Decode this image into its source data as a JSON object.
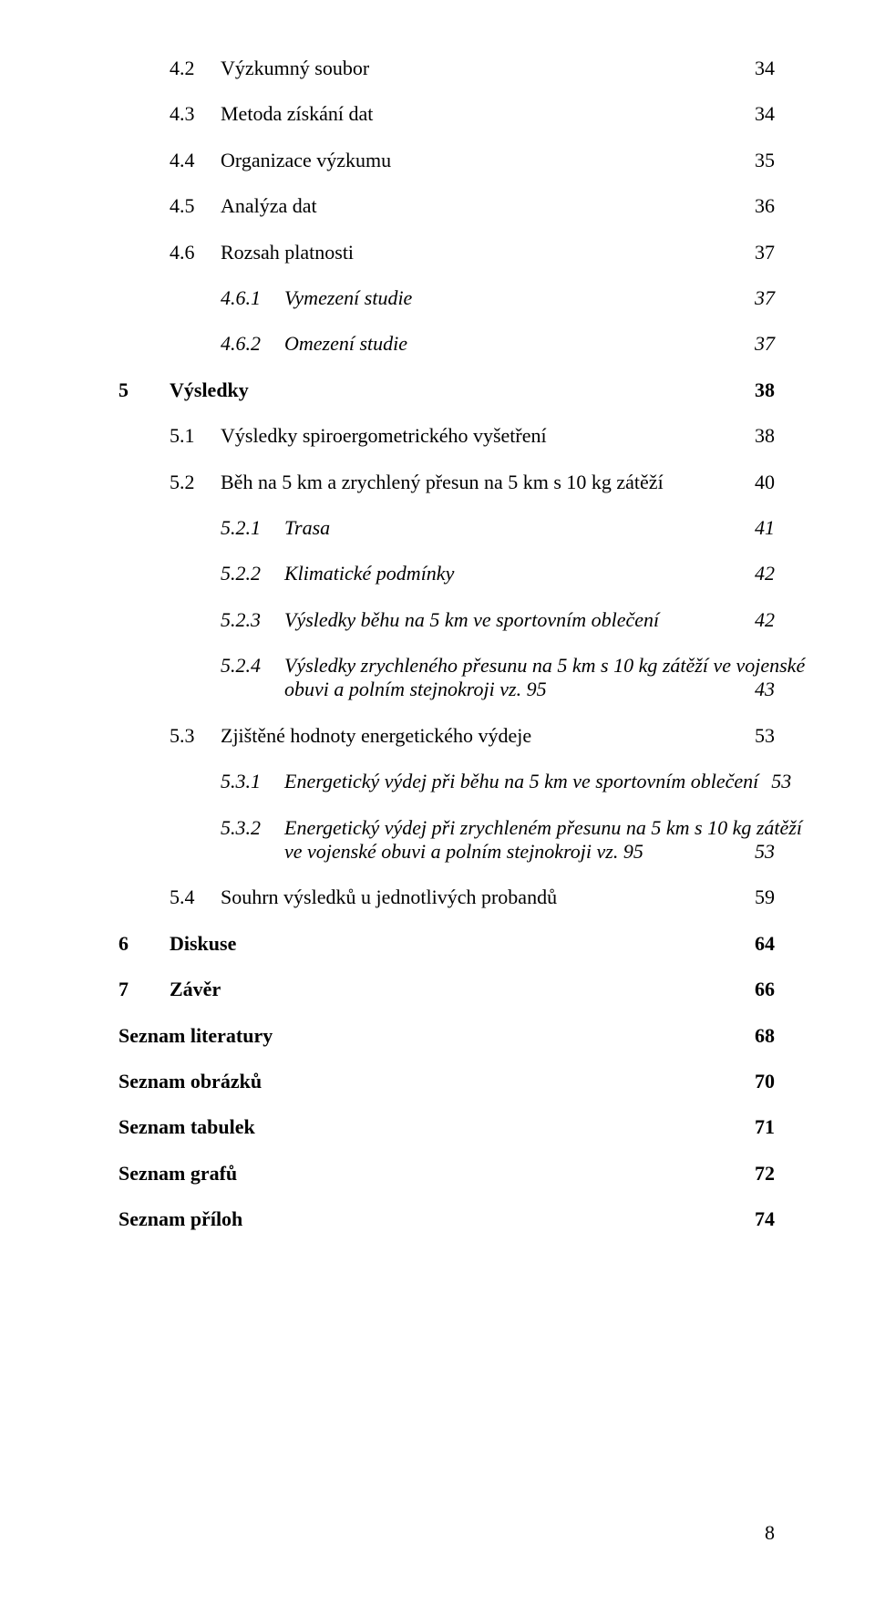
{
  "toc": {
    "items": [
      {
        "level": 2,
        "num": "4.2",
        "label": "Výzkumný soubor",
        "page": "34",
        "italic": false,
        "bold": false
      },
      {
        "level": 2,
        "num": "4.3",
        "label": "Metoda získání dat",
        "page": "34"
      },
      {
        "level": 2,
        "num": "4.4",
        "label": "Organizace výzkumu",
        "page": "35"
      },
      {
        "level": 2,
        "num": "4.5",
        "label": "Analýza dat",
        "page": "36"
      },
      {
        "level": 2,
        "num": "4.6",
        "label": "Rozsah platnosti",
        "page": "37"
      },
      {
        "level": 3,
        "num": "4.6.1",
        "label": "Vymezení studie",
        "page": "37",
        "italic": true
      },
      {
        "level": 3,
        "num": "4.6.2",
        "label": "Omezení studie",
        "page": "37",
        "italic": true
      },
      {
        "level": 1,
        "num": "5",
        "label": "Výsledky",
        "page": "38",
        "bold": true
      },
      {
        "level": 2,
        "num": "5.1",
        "label": "Výsledky spiroergometrického vyšetření",
        "page": "38"
      },
      {
        "level": 2,
        "num": "5.2",
        "label": "Běh na 5 km a zrychlený přesun na 5 km s 10 kg zátěží",
        "page": "40"
      },
      {
        "level": 3,
        "num": "5.2.1",
        "label": "Trasa",
        "page": "41",
        "italic": true
      },
      {
        "level": 3,
        "num": "5.2.2",
        "label": "Klimatické podmínky",
        "page": "42",
        "italic": true
      },
      {
        "level": 3,
        "num": "5.2.3",
        "label": "Výsledky běhu na 5 km ve sportovním oblečení",
        "page": "42",
        "italic": true
      },
      {
        "level": 3,
        "num": "5.2.4",
        "label_line1": "Výsledky zrychleného přesunu na 5 km s 10 kg zátěží ve vojenské",
        "label_line2": "obuvi a polním stejnokroji vz. 95",
        "page": "43",
        "italic": true,
        "multiline": true
      },
      {
        "level": 2,
        "num": "5.3",
        "label": "Zjištěné hodnoty energetického výdeje",
        "page": "53"
      },
      {
        "level": 3,
        "num": "5.3.1",
        "label": "Energetický výdej při běhu na 5 km ve sportovním oblečení",
        "page": "53",
        "italic": true
      },
      {
        "level": 3,
        "num": "5.3.2",
        "label_line1": "Energetický výdej při zrychleném přesunu na 5 km s 10 kg zátěží",
        "label_line2": "ve vojenské obuvi a polním stejnokroji vz. 95",
        "page": "53",
        "italic": true,
        "multiline": true
      },
      {
        "level": 2,
        "num": "5.4",
        "label": "Souhrn výsledků u jednotlivých probandů",
        "page": "59"
      },
      {
        "level": 1,
        "num": "6",
        "label": "Diskuse",
        "page": "64",
        "bold": true
      },
      {
        "level": 1,
        "num": "7",
        "label": "Závěr",
        "page": "66",
        "bold": true
      },
      {
        "level": 0,
        "num": "",
        "label": "Seznam literatury",
        "page": "68",
        "bold": true
      },
      {
        "level": 0,
        "num": "",
        "label": "Seznam obrázků",
        "page": "70",
        "bold": true
      },
      {
        "level": 0,
        "num": "",
        "label": "Seznam tabulek",
        "page": "71",
        "bold": true
      },
      {
        "level": 0,
        "num": "",
        "label": "Seznam grafů",
        "page": "72",
        "bold": true
      },
      {
        "level": 0,
        "num": "",
        "label": "Seznam příloh",
        "page": "74",
        "bold": true
      }
    ]
  },
  "footer": {
    "page_number": "8"
  }
}
